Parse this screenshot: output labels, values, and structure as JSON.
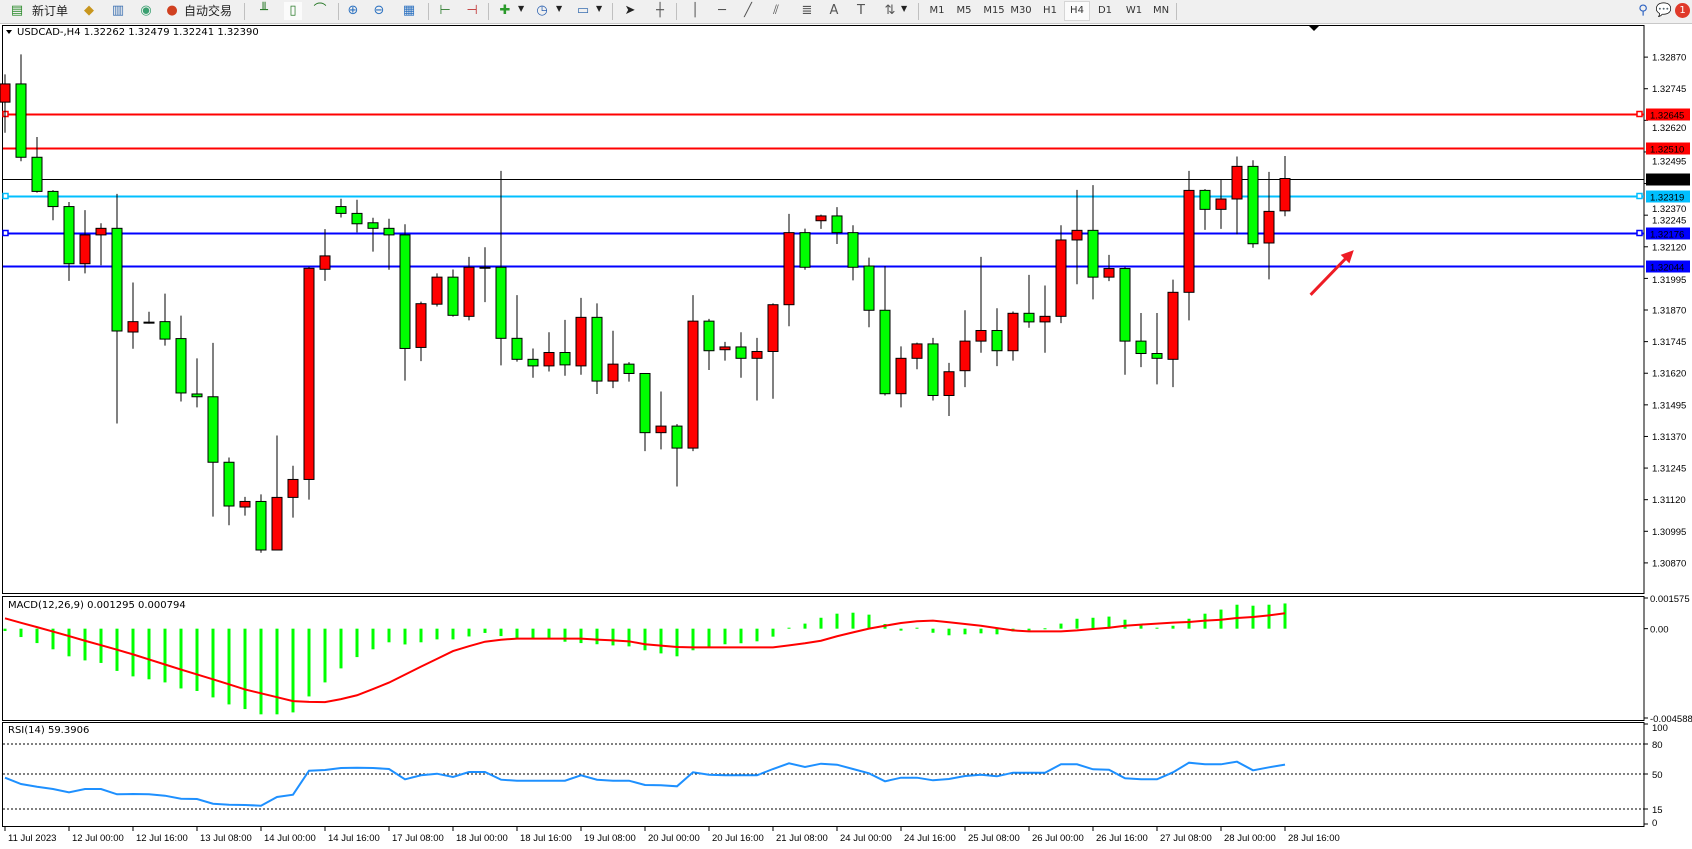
{
  "toolbar": {
    "new_order_label": "新订单",
    "auto_trading_label": "自动交易",
    "icons": [
      "new-order-icon",
      "market-watch-icon",
      "data-window-icon",
      "navigator-icon",
      "auto-trading-icon",
      "bar-chart-icon",
      "candlestick-icon",
      "line-chart-icon",
      "zoom-in-icon",
      "zoom-out-icon",
      "tile-windows-icon",
      "chart-shift-icon",
      "auto-scroll-icon",
      "indicators-icon",
      "periodicity-icon",
      "templates-icon",
      "cursor-icon",
      "crosshair-icon",
      "vertical-line-icon",
      "horizontal-line-icon",
      "trendline-icon",
      "equidistant-channel-icon",
      "fibonacci-icon",
      "text-icon",
      "text-label-icon",
      "arrows-icon"
    ],
    "timeframes": [
      "M1",
      "M5",
      "M15",
      "M30",
      "H1",
      "H4",
      "D1",
      "W1",
      "MN"
    ],
    "active_timeframe": "H4",
    "notification_count": "1"
  },
  "chart_data": {
    "type": "candlestick",
    "symbol_header": "USDCAD-,H4  1.32262 1.32479 1.32241 1.32390",
    "colors": {
      "bull": "#ff0000",
      "bear": "#00ff00",
      "outline": "#000000"
    },
    "ylim": [
      1.30751,
      1.32997
    ],
    "price_axis": {
      "ticks": [
        "1.32870",
        "1.32745",
        "1.32620",
        "1.32495",
        "1.32370",
        "1.32245",
        "1.32120",
        "1.31995",
        "1.31870",
        "1.31745",
        "1.31620",
        "1.31495",
        "1.31370",
        "1.31245",
        "1.31120",
        "1.30995",
        "1.30870"
      ]
    },
    "horizontal_lines": [
      {
        "price": 1.32645,
        "label": "1.32645",
        "color": "#ff0000",
        "text_color": "#ffffff",
        "marker": true
      },
      {
        "price": 1.3251,
        "label": "1.32510",
        "color": "#ff0000",
        "text_color": "#ffffff",
        "marker": false
      },
      {
        "price": 1.3239,
        "label": "1.32390",
        "color": "#000000",
        "text_color": "#ffffff",
        "marker": false
      },
      {
        "price": 1.32319,
        "label": "1.32319",
        "color": "#00bfff",
        "text_color": "#ffffff",
        "marker": true
      },
      {
        "price": 1.32176,
        "label": "1.32176",
        "color": "#0000ff",
        "text_color": "#ffffff",
        "marker": true
      },
      {
        "price": 1.32044,
        "label": "1.32044",
        "color": "#0000ff",
        "text_color": "#ffffff",
        "marker": false
      }
    ],
    "time_labels": [
      "11 Jul 2023",
      "12 Jul 00:00",
      "12 Jul 16:00",
      "13 Jul 08:00",
      "14 Jul 00:00",
      "14 Jul 16:00",
      "17 Jul 08:00",
      "18 Jul 00:00",
      "18 Jul 16:00",
      "19 Jul 08:00",
      "20 Jul 00:00",
      "20 Jul 16:00",
      "21 Jul 08:00",
      "24 Jul 00:00",
      "24 Jul 16:00",
      "25 Jul 08:00",
      "26 Jul 00:00",
      "26 Jul 16:00",
      "27 Jul 08:00",
      "28 Jul 00:00",
      "28 Jul 16:00"
    ],
    "ohlc_fields": [
      "open",
      "high",
      "low",
      "close"
    ],
    "candles": [
      [
        1.32692,
        1.32802,
        1.32571,
        1.32764
      ],
      [
        1.32764,
        1.32881,
        1.32458,
        1.32474
      ],
      [
        1.32474,
        1.32554,
        1.32334,
        1.32339
      ],
      [
        1.32339,
        1.32344,
        1.32225,
        1.32279
      ],
      [
        1.32279,
        1.32297,
        1.31985,
        1.32053
      ],
      [
        1.32053,
        1.32265,
        1.32015,
        1.32167
      ],
      [
        1.32167,
        1.32213,
        1.32047,
        1.32193
      ],
      [
        1.32193,
        1.32329,
        1.31421,
        1.31787
      ],
      [
        1.31783,
        1.31979,
        1.31717,
        1.31824
      ],
      [
        1.31822,
        1.31863,
        1.31816,
        1.31821
      ],
      [
        1.31824,
        1.31935,
        1.31729,
        1.31755
      ],
      [
        1.31757,
        1.31848,
        1.31508,
        1.31542
      ],
      [
        1.31538,
        1.31679,
        1.31485,
        1.31527
      ],
      [
        1.31527,
        1.3174,
        1.31053,
        1.31268
      ],
      [
        1.31268,
        1.31287,
        1.31019,
        1.31095
      ],
      [
        1.31091,
        1.31131,
        1.31057,
        1.31113
      ],
      [
        1.31113,
        1.31141,
        1.3091,
        1.30921
      ],
      [
        1.30921,
        1.31374,
        1.30921,
        1.31129
      ],
      [
        1.31129,
        1.31254,
        1.31049,
        1.312
      ],
      [
        1.312,
        1.32041,
        1.3112,
        1.32035
      ],
      [
        1.32031,
        1.3219,
        1.31985,
        1.32084
      ],
      [
        1.32279,
        1.3231,
        1.32236,
        1.32252
      ],
      [
        1.32252,
        1.32306,
        1.32177,
        1.32211
      ],
      [
        1.32215,
        1.32235,
        1.32101,
        1.32193
      ],
      [
        1.32193,
        1.32231,
        1.32029,
        1.32167
      ],
      [
        1.32167,
        1.32209,
        1.31591,
        1.31718
      ],
      [
        1.31722,
        1.31903,
        1.31668,
        1.31895
      ],
      [
        1.31893,
        1.32015,
        1.31884,
        1.32
      ],
      [
        1.32,
        1.3203,
        1.31844,
        1.31849
      ],
      [
        1.31845,
        1.3208,
        1.31829,
        1.32039
      ],
      [
        1.32039,
        1.32118,
        1.31901,
        1.32037
      ],
      [
        1.32039,
        1.3242,
        1.31651,
        1.31758
      ],
      [
        1.31758,
        1.31929,
        1.31666,
        1.31675
      ],
      [
        1.31675,
        1.31718,
        1.31602,
        1.31649
      ],
      [
        1.31649,
        1.31782,
        1.31627,
        1.31702
      ],
      [
        1.31702,
        1.31831,
        1.3161,
        1.31653
      ],
      [
        1.31649,
        1.31918,
        1.31614,
        1.31841
      ],
      [
        1.31841,
        1.31896,
        1.31538,
        1.31589
      ],
      [
        1.31589,
        1.31788,
        1.31561,
        1.31656
      ],
      [
        1.31656,
        1.31664,
        1.31587,
        1.31619
      ],
      [
        1.31619,
        1.31619,
        1.31312,
        1.31385
      ],
      [
        1.31385,
        1.31548,
        1.31319,
        1.31411
      ],
      [
        1.31411,
        1.31419,
        1.31172,
        1.31324
      ],
      [
        1.31324,
        1.31929,
        1.31312,
        1.31826
      ],
      [
        1.31826,
        1.31835,
        1.31633,
        1.31709
      ],
      [
        1.31713,
        1.31744,
        1.3167,
        1.31724
      ],
      [
        1.31724,
        1.31782,
        1.31602,
        1.31679
      ],
      [
        1.31679,
        1.3176,
        1.31512,
        1.31706
      ],
      [
        1.31706,
        1.31896,
        1.31519,
        1.31891
      ],
      [
        1.31891,
        1.3225,
        1.31806,
        1.32176
      ],
      [
        1.32176,
        1.32192,
        1.32029,
        1.32039
      ],
      [
        1.32223,
        1.32247,
        1.32191,
        1.32242
      ],
      [
        1.32242,
        1.32277,
        1.32131,
        1.32176
      ],
      [
        1.32176,
        1.32205,
        1.31987,
        1.32039
      ],
      [
        1.32044,
        1.32077,
        1.31802,
        1.31869
      ],
      [
        1.31869,
        1.32044,
        1.31532,
        1.31539
      ],
      [
        1.31539,
        1.31726,
        1.31485,
        1.31679
      ],
      [
        1.31679,
        1.31741,
        1.31636,
        1.31736
      ],
      [
        1.31736,
        1.3176,
        1.31512,
        1.31532
      ],
      [
        1.31532,
        1.31661,
        1.31451,
        1.31626
      ],
      [
        1.3163,
        1.31869,
        1.31565,
        1.31747
      ],
      [
        1.31747,
        1.3208,
        1.31701,
        1.31789
      ],
      [
        1.31789,
        1.31877,
        1.31648,
        1.31709
      ],
      [
        1.31709,
        1.31864,
        1.3167,
        1.31857
      ],
      [
        1.31857,
        1.32009,
        1.318,
        1.31823
      ],
      [
        1.31823,
        1.31967,
        1.31701,
        1.31845
      ],
      [
        1.31845,
        1.32205,
        1.31818,
        1.32147
      ],
      [
        1.32147,
        1.32345,
        1.31972,
        1.32185
      ],
      [
        1.32185,
        1.32364,
        1.31912,
        1.32
      ],
      [
        1.32,
        1.32088,
        1.31984,
        1.32034
      ],
      [
        1.32034,
        1.32041,
        1.31614,
        1.31747
      ],
      [
        1.31747,
        1.31858,
        1.31644,
        1.31698
      ],
      [
        1.31698,
        1.31858,
        1.31576,
        1.31679
      ],
      [
        1.31675,
        1.3199,
        1.31565,
        1.3194
      ],
      [
        1.3194,
        1.3242,
        1.31829,
        1.32343
      ],
      [
        1.32343,
        1.32348,
        1.32187,
        1.32268
      ],
      [
        1.32268,
        1.32387,
        1.32191,
        1.32309
      ],
      [
        1.32309,
        1.32477,
        1.32169,
        1.32438
      ],
      [
        1.32438,
        1.32462,
        1.32116,
        1.32132
      ],
      [
        1.32135,
        1.32416,
        1.31991,
        1.3226
      ],
      [
        1.32262,
        1.32479,
        1.32241,
        1.3239
      ]
    ],
    "annotation_arrow": {
      "color": "#ee1c25",
      "from_bar": 81.6,
      "from_price": 1.3193,
      "to_bar": 84.3,
      "to_price": 1.32107
    },
    "macd": {
      "label": "MACD(12,26,9) 0.001295 0.000794",
      "ylim": [
        -0.004588,
        0.001575
      ],
      "axis_labels": [
        "0.001575",
        "0.00",
        "-0.004588"
      ],
      "histogram_color": "#00ff00",
      "signal_color": "#ff0000",
      "histogram": [
        -0.00012,
        -0.00043,
        -0.00074,
        -0.00106,
        -0.00142,
        -0.00163,
        -0.00176,
        -0.00217,
        -0.00245,
        -0.0026,
        -0.00276,
        -0.00307,
        -0.0032,
        -0.00353,
        -0.00389,
        -0.00413,
        -0.0044,
        -0.0044,
        -0.0043,
        -0.00348,
        -0.00276,
        -0.00204,
        -0.00146,
        -0.00106,
        -0.0007,
        -0.00081,
        -0.0007,
        -0.00055,
        -0.00055,
        -0.0004,
        -0.00022,
        -0.00038,
        -0.00051,
        -0.00051,
        -0.00055,
        -0.00067,
        -0.00074,
        -0.0008,
        -0.00086,
        -0.00091,
        -0.00111,
        -0.00127,
        -0.00142,
        -0.00111,
        -0.00094,
        -0.0008,
        -0.00075,
        -0.00065,
        -0.00041,
        5e-05,
        0.00026,
        0.00056,
        0.00077,
        0.00082,
        0.00072,
        0.00024,
        -0.0001,
        5e-05,
        -0.00021,
        -0.00034,
        -0.00029,
        -0.00024,
        -0.00029,
        -0.00014,
        -9e-05,
        2e-05,
        0.00026,
        0.00051,
        0.00056,
        0.00062,
        0.00046,
        0.00021,
        5e-05,
        0.00015,
        0.00051,
        0.00077,
        0.00098,
        0.00123,
        0.00118,
        0.00123,
        0.001295
      ],
      "signal": [
        0.00053,
        0.0003,
        8e-05,
        -0.00015,
        -0.00038,
        -0.00062,
        -0.00085,
        -0.00108,
        -0.00132,
        -0.00158,
        -0.00184,
        -0.0021,
        -0.00235,
        -0.0026,
        -0.00286,
        -0.00312,
        -0.00332,
        -0.00352,
        -0.00372,
        -0.00376,
        -0.00377,
        -0.00362,
        -0.00342,
        -0.0031,
        -0.00277,
        -0.00236,
        -0.00195,
        -0.00155,
        -0.00115,
        -0.0009,
        -0.00067,
        -0.00057,
        -0.00051,
        -0.00051,
        -0.00051,
        -0.00051,
        -0.00051,
        -0.00056,
        -0.0006,
        -0.00065,
        -0.0008,
        -0.00087,
        -0.00094,
        -0.00096,
        -0.00096,
        -0.00096,
        -0.00096,
        -0.00096,
        -0.00096,
        -0.00086,
        -0.00075,
        -0.00062,
        -0.00039,
        -0.00019,
        0.0,
        0.00015,
        0.00029,
        0.00038,
        0.00041,
        0.00033,
        0.00024,
        0.00015,
        3e-05,
        -9e-05,
        -0.00014,
        -0.00014,
        -0.00014,
        -9e-05,
        -2e-05,
        5e-05,
        0.00015,
        0.00021,
        0.00026,
        0.00031,
        0.00034,
        0.00041,
        0.00046,
        0.00055,
        0.0006,
        0.00068,
        0.000794
      ]
    },
    "rsi": {
      "label": "RSI(14) 59.3906",
      "ylim": [
        0,
        100
      ],
      "levels": [
        80,
        50,
        15
      ],
      "axis_labels": [
        "100",
        "80",
        "50",
        "15",
        "0"
      ],
      "line_color": "#1e90ff",
      "values": [
        46.3,
        40,
        37.3,
        35,
        31.7,
        35,
        35,
        29.7,
        30,
        29.7,
        28.3,
        25.3,
        25,
        20.3,
        19.3,
        19,
        18.3,
        27,
        29.3,
        53.3,
        54,
        56,
        56.3,
        56,
        55,
        44.7,
        48.7,
        50.3,
        47,
        52,
        52,
        44.3,
        43.3,
        43.3,
        43.3,
        43.3,
        48.7,
        44.3,
        43.3,
        43.3,
        39,
        38.7,
        37.7,
        51.7,
        49.3,
        48.7,
        48.7,
        48.7,
        55,
        60.7,
        57,
        60.3,
        59.3,
        55,
        50.7,
        42.7,
        46.3,
        46.3,
        43.7,
        45,
        48,
        49.3,
        47.7,
        51.3,
        51.3,
        51.3,
        59.7,
        59.7,
        54.7,
        54.3,
        45.7,
        44.7,
        44.7,
        51.7,
        61.3,
        59.7,
        59.7,
        62.3,
        53.7,
        56.7,
        59.3906
      ]
    }
  }
}
